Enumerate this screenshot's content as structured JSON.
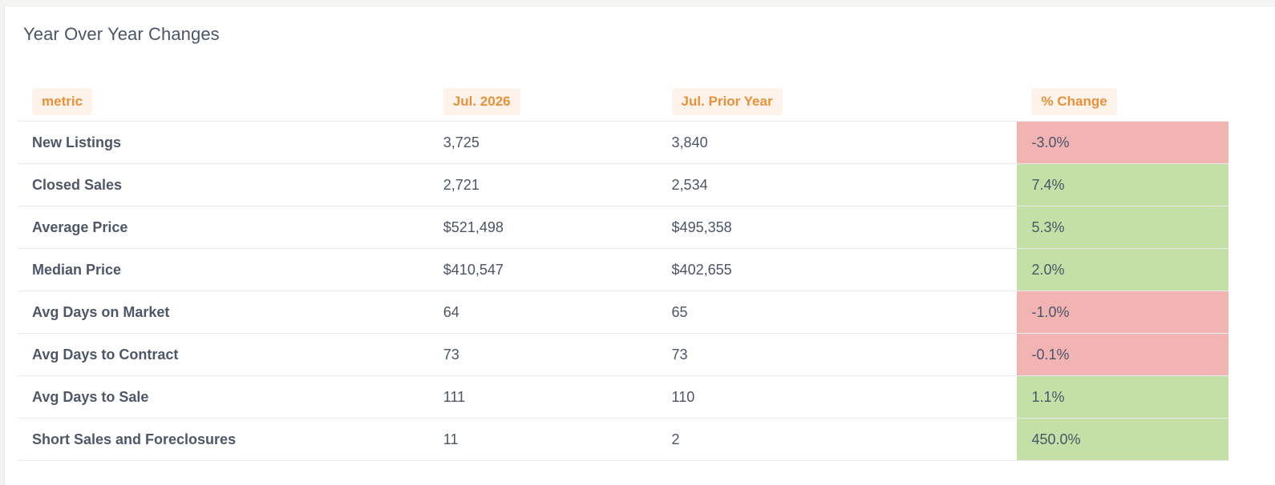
{
  "panel": {
    "title": "Year Over Year Changes"
  },
  "table": {
    "headers": [
      "metric",
      "Jul. 2026",
      "Jul. Prior Year",
      "% Change"
    ],
    "rows": [
      {
        "metric": "New Listings",
        "current": "3,725",
        "prior": "3,840",
        "change": "-3.0%",
        "trend": "negative"
      },
      {
        "metric": "Closed Sales",
        "current": "2,721",
        "prior": "2,534",
        "change": "7.4%",
        "trend": "positive"
      },
      {
        "metric": "Average Price",
        "current": "$521,498",
        "prior": "$495,358",
        "change": "5.3%",
        "trend": "positive"
      },
      {
        "metric": "Median Price",
        "current": "$410,547",
        "prior": "$402,655",
        "change": "2.0%",
        "trend": "positive"
      },
      {
        "metric": "Avg Days on Market",
        "current": "64",
        "prior": "65",
        "change": "-1.0%",
        "trend": "negative"
      },
      {
        "metric": "Avg Days to Contract",
        "current": "73",
        "prior": "73",
        "change": "-0.1%",
        "trend": "negative"
      },
      {
        "metric": "Avg Days to Sale",
        "current": "111",
        "prior": "110",
        "change": "1.1%",
        "trend": "positive"
      },
      {
        "metric": "Short Sales and Foreclosures",
        "current": "11",
        "prior": "2",
        "change": "450.0%",
        "trend": "positive"
      }
    ]
  },
  "colors": {
    "header_text": "#e8913a",
    "header_pill_bg": "#fdf3ea",
    "negative_bg": "#f2b3b3",
    "positive_bg": "#c5e0a6",
    "body_text": "#4a5568"
  }
}
